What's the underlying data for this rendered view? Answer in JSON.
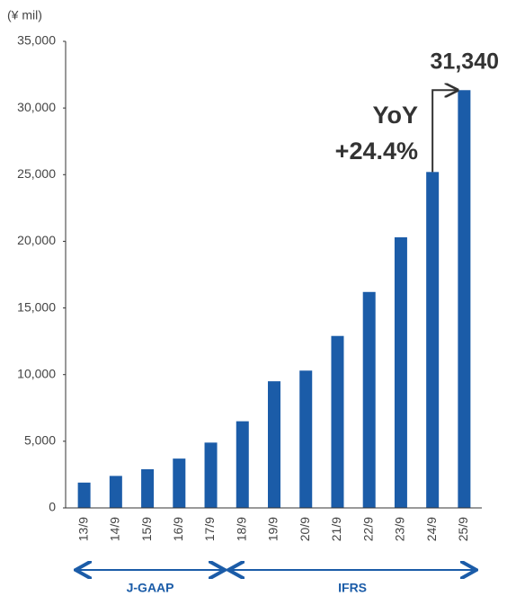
{
  "chart_data": {
    "type": "bar",
    "unit_label": "(¥ mil)",
    "categories": [
      "13/9",
      "14/9",
      "15/9",
      "16/9",
      "17/9",
      "18/9",
      "19/9",
      "20/9",
      "21/9",
      "22/9",
      "23/9",
      "24/9",
      "25/9"
    ],
    "values": [
      1900,
      2400,
      2900,
      3700,
      4900,
      6500,
      9500,
      10300,
      12900,
      16200,
      20300,
      25200,
      31340
    ],
    "value_labels": [
      null,
      null,
      null,
      null,
      null,
      null,
      null,
      null,
      null,
      null,
      null,
      null,
      "31,340"
    ],
    "color": "#1b5ca8",
    "ylim": [
      0,
      35000
    ],
    "yticks": [
      0,
      {
        "value": 5000,
        "label": "5,000"
      },
      {
        "value": 10000,
        "label": "10,000"
      },
      {
        "value": 15000,
        "label": "15,000"
      },
      {
        "value": 20000,
        "label": "20,000"
      },
      {
        "value": 25000,
        "label": "25,000"
      },
      {
        "value": 30000,
        "label": "30,000"
      },
      {
        "value": 35000,
        "label": "35,000"
      }
    ],
    "grid": false,
    "annotations": [
      "YoY",
      "+24.4%"
    ],
    "groups": [
      {
        "label": "J-GAAP"
      },
      {
        "label": "IFRS"
      }
    ]
  }
}
